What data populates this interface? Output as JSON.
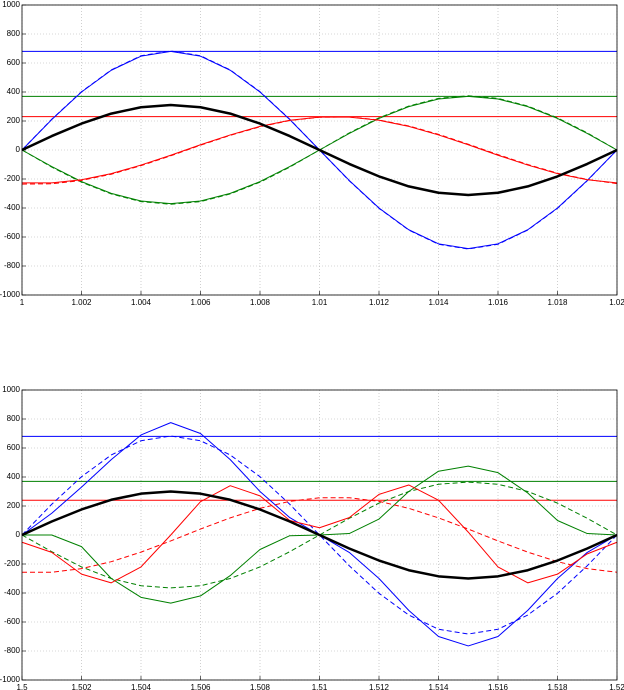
{
  "chart_data": [
    {
      "type": "line",
      "x": [
        1,
        1.001,
        1.002,
        1.003,
        1.004,
        1.005,
        1.006,
        1.007,
        1.008,
        1.009,
        1.01,
        1.011,
        1.012,
        1.013,
        1.014,
        1.015,
        1.016,
        1.017,
        1.018,
        1.019,
        1.02
      ],
      "xlim": [
        1,
        1.02
      ],
      "xticks": [
        1,
        1.002,
        1.004,
        1.006,
        1.008,
        1.01,
        1.012,
        1.014,
        1.016,
        1.018,
        1.02
      ],
      "ylim": [
        -1000,
        1000
      ],
      "yticks": [
        -1000,
        -800,
        -600,
        -400,
        -200,
        0,
        200,
        400,
        600,
        800,
        1000
      ],
      "grid": true,
      "series": [
        {
          "color": "#0000ff",
          "style": "solid",
          "linewidth": 1,
          "values": [
            680,
            680,
            680,
            680,
            680,
            680,
            680,
            680,
            680,
            680,
            680,
            680,
            680,
            680,
            680,
            680,
            680,
            680,
            680,
            680,
            680
          ]
        },
        {
          "color": "#008000",
          "style": "solid",
          "linewidth": 1,
          "values": [
            370,
            370,
            370,
            370,
            370,
            370,
            370,
            370,
            370,
            370,
            370,
            370,
            370,
            370,
            370,
            370,
            370,
            370,
            370,
            370,
            370
          ]
        },
        {
          "color": "#ff0000",
          "style": "solid",
          "linewidth": 1,
          "values": [
            230,
            230,
            230,
            230,
            230,
            230,
            230,
            230,
            230,
            230,
            230,
            230,
            230,
            230,
            230,
            230,
            230,
            230,
            230,
            230,
            230
          ]
        },
        {
          "color": "#0000ff",
          "style": "solid",
          "linewidth": 1,
          "values": [
            0,
            210,
            400,
            550,
            647,
            680,
            647,
            550,
            400,
            210,
            0,
            -210,
            -400,
            -550,
            -647,
            -680,
            -647,
            -550,
            -400,
            -210,
            0
          ]
        },
        {
          "color": "#0000ff",
          "style": "dashed",
          "linewidth": 1,
          "values": [
            0,
            212,
            402,
            552,
            650,
            683,
            650,
            552,
            402,
            212,
            0,
            -212,
            -402,
            -552,
            -650,
            -683,
            -650,
            -552,
            -402,
            -212,
            0
          ]
        },
        {
          "color": "#008000",
          "style": "solid",
          "linewidth": 1,
          "values": [
            0,
            -114,
            -218,
            -299,
            -352,
            -370,
            -352,
            -299,
            -218,
            -114,
            0,
            114,
            218,
            299,
            352,
            370,
            352,
            299,
            218,
            114,
            0
          ]
        },
        {
          "color": "#008000",
          "style": "dashed",
          "linewidth": 1,
          "values": [
            0,
            -118,
            -222,
            -303,
            -356,
            -374,
            -356,
            -303,
            -222,
            -118,
            0,
            118,
            222,
            303,
            356,
            374,
            356,
            303,
            222,
            118,
            0
          ]
        },
        {
          "color": "#ff0000",
          "style": "solid",
          "linewidth": 1,
          "values": [
            -227,
            -227,
            -205,
            -163,
            -104,
            -36,
            36,
            104,
            163,
            205,
            227,
            227,
            205,
            163,
            104,
            36,
            -36,
            -104,
            -163,
            -205,
            -227
          ]
        },
        {
          "color": "#ff0000",
          "style": "dashed",
          "linewidth": 1,
          "values": [
            -235,
            -233,
            -210,
            -167,
            -108,
            -40,
            33,
            101,
            160,
            203,
            226,
            228,
            207,
            166,
            108,
            40,
            -32,
            -100,
            -160,
            -203,
            -232
          ]
        },
        {
          "color": "#000000",
          "style": "solid",
          "linewidth": 2.5,
          "values": [
            0,
            96,
            182,
            251,
            295,
            310,
            295,
            251,
            182,
            96,
            0,
            -96,
            -182,
            -251,
            -295,
            -310,
            -295,
            -251,
            -182,
            -96,
            0
          ]
        }
      ]
    },
    {
      "type": "line",
      "x": [
        1.5,
        1.501,
        1.502,
        1.503,
        1.504,
        1.505,
        1.506,
        1.507,
        1.508,
        1.509,
        1.51,
        1.511,
        1.512,
        1.513,
        1.514,
        1.515,
        1.516,
        1.517,
        1.518,
        1.519,
        1.52
      ],
      "xlim": [
        1.5,
        1.52
      ],
      "xticks": [
        1.5,
        1.502,
        1.504,
        1.506,
        1.508,
        1.51,
        1.512,
        1.514,
        1.516,
        1.518,
        1.52
      ],
      "ylim": [
        -1000,
        1000
      ],
      "yticks": [
        -1000,
        -800,
        -600,
        -400,
        -200,
        0,
        200,
        400,
        600,
        800,
        1000
      ],
      "grid": true,
      "series": [
        {
          "color": "#0000ff",
          "style": "solid",
          "linewidth": 1,
          "values": [
            680,
            680,
            680,
            680,
            680,
            680,
            680,
            680,
            680,
            680,
            680,
            680,
            680,
            680,
            680,
            680,
            680,
            680,
            680,
            680,
            680
          ]
        },
        {
          "color": "#008000",
          "style": "solid",
          "linewidth": 1,
          "values": [
            370,
            370,
            370,
            370,
            370,
            370,
            370,
            370,
            370,
            370,
            370,
            370,
            370,
            370,
            370,
            370,
            370,
            370,
            370,
            370,
            370
          ]
        },
        {
          "color": "#ff0000",
          "style": "solid",
          "linewidth": 1,
          "values": [
            240,
            240,
            240,
            240,
            240,
            240,
            240,
            240,
            240,
            240,
            240,
            240,
            240,
            240,
            240,
            240,
            240,
            240,
            240,
            240,
            240
          ]
        },
        {
          "color": "#0000ff",
          "style": "solid",
          "linewidth": 1,
          "values": [
            0,
            150,
            330,
            520,
            690,
            775,
            700,
            520,
            300,
            120,
            0,
            -120,
            -300,
            -520,
            -700,
            -765,
            -700,
            -520,
            -300,
            -120,
            0
          ]
        },
        {
          "color": "#0000ff",
          "style": "dashed",
          "linewidth": 1,
          "values": [
            0,
            212,
            402,
            552,
            650,
            683,
            650,
            552,
            402,
            212,
            0,
            -212,
            -402,
            -552,
            -650,
            -683,
            -650,
            -552,
            -402,
            -212,
            0
          ]
        },
        {
          "color": "#008000",
          "style": "solid",
          "linewidth": 1,
          "values": [
            0,
            0,
            -80,
            -300,
            -430,
            -470,
            -420,
            -280,
            -100,
            -5,
            0,
            10,
            110,
            300,
            440,
            475,
            430,
            290,
            100,
            10,
            0
          ]
        },
        {
          "color": "#008000",
          "style": "dashed",
          "linewidth": 1,
          "values": [
            0,
            -115,
            -220,
            -300,
            -350,
            -365,
            -350,
            -300,
            -220,
            -115,
            0,
            115,
            220,
            300,
            350,
            365,
            350,
            300,
            220,
            115,
            0
          ]
        },
        {
          "color": "#ff0000",
          "style": "solid",
          "linewidth": 1,
          "values": [
            -50,
            -120,
            -270,
            -330,
            -220,
            0,
            230,
            340,
            270,
            100,
            50,
            120,
            280,
            345,
            240,
            20,
            -220,
            -330,
            -270,
            -130,
            -50
          ]
        },
        {
          "color": "#ff0000",
          "style": "dashed",
          "linewidth": 1,
          "values": [
            -257,
            -257,
            -232,
            -184,
            -118,
            -41,
            41,
            118,
            184,
            232,
            257,
            257,
            232,
            184,
            118,
            41,
            -41,
            -118,
            -184,
            -232,
            -257
          ]
        },
        {
          "color": "#000000",
          "style": "solid",
          "linewidth": 2.5,
          "values": [
            0,
            93,
            176,
            243,
            285,
            300,
            285,
            243,
            176,
            93,
            0,
            -93,
            -176,
            -243,
            -285,
            -300,
            -285,
            -243,
            -176,
            -93,
            0
          ]
        }
      ]
    }
  ]
}
